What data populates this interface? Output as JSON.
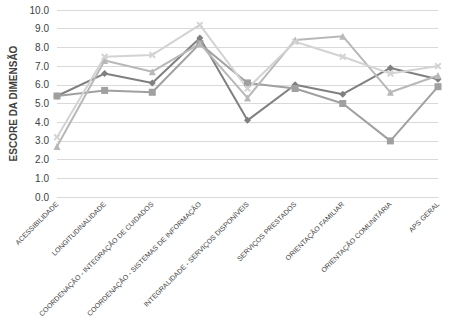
{
  "chart_data": {
    "type": "line",
    "y_label": "ESCORE DA DIMENSÃO",
    "categories": [
      "ACESSIBILIDADE",
      "LONGITUDINALIDADE",
      "COORDENAÇÃO - INTEGRAÇÃO DE CUIDADOS",
      "COORDENAÇÃO - SISTEMAS DE INFORMAÇÃO",
      "INTEGRALIDADE - SERVIÇOS DISPONÍVEIS",
      "SERVIÇOS PRESTADOS",
      "ORIENTAÇÃO FAMILIAR",
      "ORIENTAÇÃO COMUNITÁRIA",
      "APS GERAL"
    ],
    "series": [
      {
        "color": "#808080",
        "marker": "diamond",
        "values": [
          5.4,
          6.6,
          6.1,
          8.5,
          4.1,
          6.0,
          5.5,
          6.9,
          6.3
        ]
      },
      {
        "color": "#a0a0a0",
        "marker": "square",
        "values": [
          5.4,
          5.7,
          5.6,
          8.2,
          6.1,
          5.8,
          5.0,
          3.0,
          5.9
        ]
      },
      {
        "color": "#b8b8b8",
        "marker": "triangle",
        "values": [
          2.7,
          7.3,
          6.7,
          8.2,
          5.3,
          8.4,
          8.6,
          5.6,
          6.5
        ]
      },
      {
        "color": "#d3d3d3",
        "marker": "x",
        "values": [
          3.2,
          7.5,
          7.6,
          9.2,
          5.8,
          8.3,
          7.5,
          6.6,
          7.0
        ]
      }
    ],
    "ylim": [
      0,
      10
    ],
    "yticks": [
      {
        "value": 0,
        "label": "0.0"
      },
      {
        "value": 1,
        "label": "1.0"
      },
      {
        "value": 2,
        "label": "2.0"
      },
      {
        "value": 3,
        "label": "3.0"
      },
      {
        "value": 4,
        "label": "4.0"
      },
      {
        "value": 5,
        "label": "5.0"
      },
      {
        "value": 6,
        "label": "6.0"
      },
      {
        "value": 7,
        "label": "7.0"
      },
      {
        "value": 8,
        "label": "8.0"
      },
      {
        "value": 9,
        "label": "9.0"
      },
      {
        "value": 10,
        "label": "10.0"
      }
    ],
    "grid": true
  }
}
